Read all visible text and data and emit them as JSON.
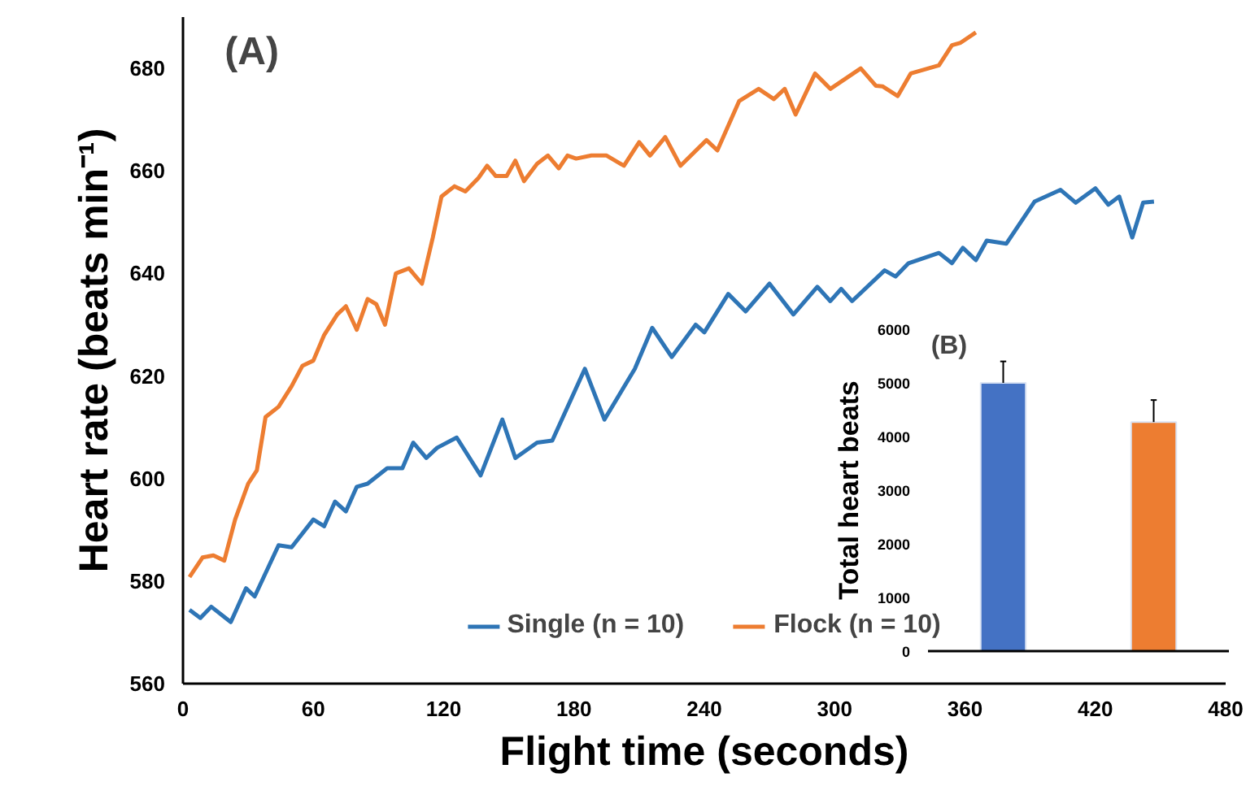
{
  "chart_data": [
    {
      "type": "line",
      "xlabel": "Flight time (seconds)",
      "ylabel": "Heart rate (beats min⁻¹)",
      "annotations": [
        "(A)"
      ],
      "xlim": [
        0,
        480
      ],
      "xticks": [
        0,
        60,
        120,
        180,
        240,
        300,
        360,
        420,
        480
      ],
      "ylim": [
        560,
        690
      ],
      "yticks": [
        560,
        580,
        600,
        620,
        640,
        660,
        680
      ],
      "grid": false,
      "legend": "bottom",
      "line_style": "solid",
      "marker": "none",
      "series": [
        {
          "name": "Single (n = 10)",
          "color": "#2e75b6",
          "x": [
            3,
            8,
            13,
            22,
            29,
            33,
            44,
            50,
            60,
            65,
            70,
            75,
            80,
            85,
            94,
            101,
            106,
            112,
            117,
            126,
            137,
            147,
            153,
            163,
            170,
            185,
            194,
            208,
            216,
            225,
            236,
            240,
            251,
            259,
            270,
            281,
            292,
            298,
            303,
            308,
            323,
            328,
            334,
            348,
            354,
            359,
            365,
            370,
            379,
            392,
            404,
            411,
            420,
            426,
            431,
            437,
            442,
            447
          ],
          "values": [
            574.4,
            572.8,
            575,
            572,
            578.6,
            577,
            587,
            586.6,
            592,
            590.7,
            595.5,
            593.6,
            598.4,
            599,
            602,
            602,
            607,
            604,
            606,
            608,
            600.6,
            611.5,
            604,
            607,
            607.4,
            621.4,
            611.5,
            621.4,
            629.4,
            623.7,
            630,
            628.5,
            636,
            632.6,
            638,
            632,
            637.4,
            634.6,
            637,
            634.6,
            640.6,
            639.4,
            642,
            644,
            642,
            645,
            642.6,
            646.4,
            645.8,
            654,
            656.3,
            653.8,
            656.6,
            653.4,
            655,
            647,
            653.8,
            654
          ]
        },
        {
          "name": "Flock (n = 10)",
          "color": "#ed7d31",
          "x": [
            3,
            9,
            14,
            19,
            24,
            30,
            34,
            38,
            44,
            50,
            55,
            60,
            65,
            71,
            75,
            80,
            85,
            89,
            93,
            98,
            104,
            110,
            115,
            119,
            125,
            130,
            136,
            140,
            144,
            149,
            153,
            157,
            163,
            168,
            173,
            177,
            181,
            188,
            195,
            203,
            210,
            215,
            222,
            229,
            241,
            246,
            256,
            265,
            272,
            277,
            282,
            291,
            298,
            312,
            319,
            322,
            329,
            335,
            348,
            354,
            358,
            365
          ],
          "values": [
            580.8,
            584.6,
            585,
            584,
            592,
            599,
            601.6,
            612,
            614,
            618,
            622,
            623,
            628,
            632,
            633.6,
            629,
            635,
            634,
            630,
            640,
            641,
            638,
            647,
            655,
            657,
            656,
            658.6,
            661,
            659,
            659,
            662,
            658,
            661.4,
            663,
            660.5,
            663,
            662.4,
            663,
            663,
            661,
            665.6,
            663,
            666.6,
            661,
            666,
            664,
            673.6,
            676,
            674,
            676,
            671,
            679,
            676,
            680,
            676.6,
            676.5,
            674.6,
            679,
            680.6,
            684.5,
            685,
            687
          ]
        }
      ]
    },
    {
      "type": "bar",
      "ylabel": "Total heart beats",
      "annotations": [
        "(B)"
      ],
      "categories": [
        null,
        null
      ],
      "values": [
        5000,
        4270
      ],
      "colors": [
        "#4472c4",
        "#ed7d31"
      ],
      "errors": [
        [
          5000,
          5400
        ],
        [
          4270,
          4680
        ]
      ],
      "ylim": [
        0,
        6000
      ],
      "yticks": [
        0,
        1000,
        2000,
        3000,
        4000,
        5000,
        6000
      ],
      "grid": false,
      "tick_labels": "y"
    }
  ]
}
